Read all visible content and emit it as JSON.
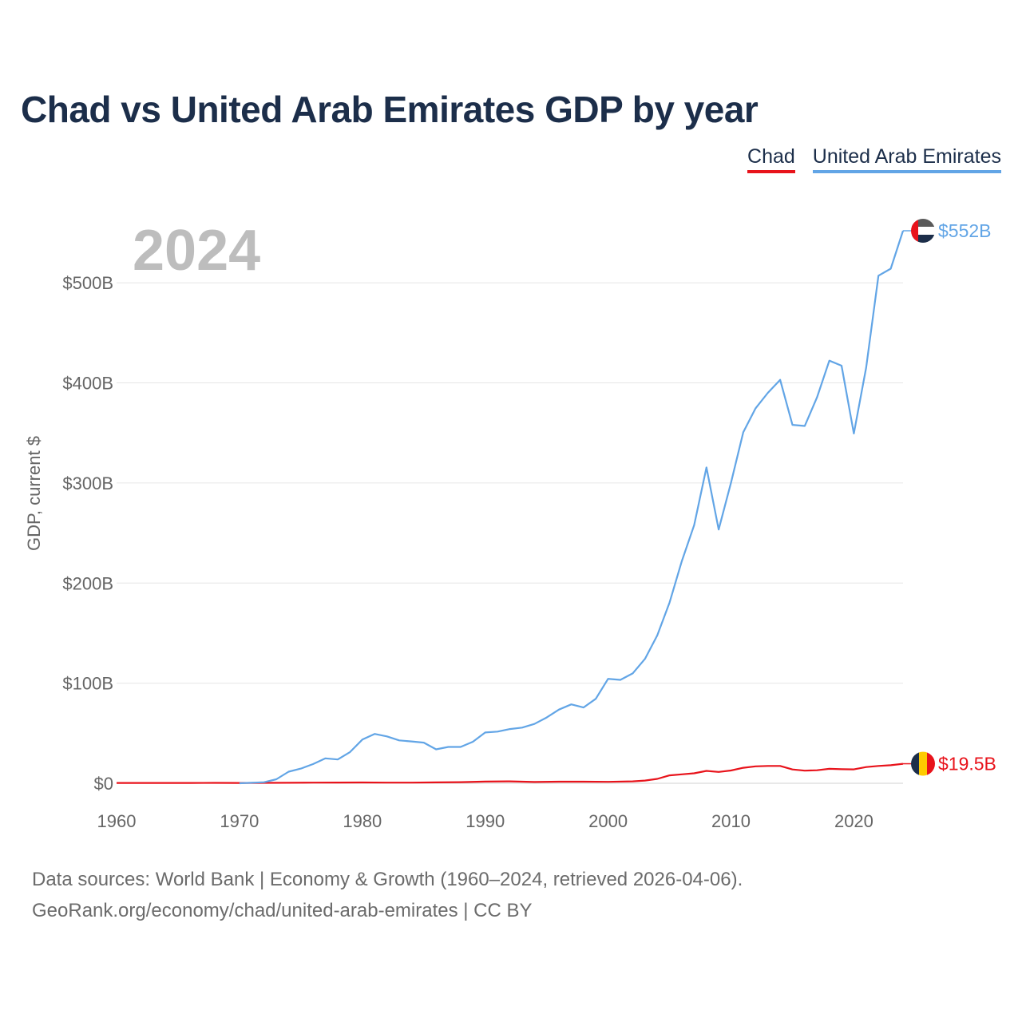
{
  "title": "Chad vs United Arab Emirates GDP by year",
  "legend": {
    "chad": "Chad",
    "uae": "United Arab Emirates"
  },
  "year_label": "2024",
  "source": {
    "line1": "Data sources: World Bank | Economy & Growth (1960–2024, retrieved 2026-04-06).",
    "line2": "GeoRank.org/economy/chad/united-arab-emirates | CC BY"
  },
  "colors": {
    "chad": "#e8131b",
    "uae": "#62a5e6",
    "grid": "#e6e6e6",
    "axis_text": "#666666",
    "year": "#bdbdbd"
  },
  "chart_data": {
    "type": "line",
    "title": "Chad vs United Arab Emirates GDP by year",
    "xlabel": "",
    "ylabel": "GDP, current $",
    "xlim": [
      1960,
      2024
    ],
    "ylim": [
      0,
      552
    ],
    "xticks": [
      1960,
      1970,
      1980,
      1990,
      2000,
      2010,
      2020
    ],
    "yticks": [
      0,
      100,
      200,
      300,
      400,
      500
    ],
    "ytick_labels": [
      "$0",
      "$100B",
      "$200B",
      "$300B",
      "$400B",
      "$500B"
    ],
    "grid": true,
    "series": [
      {
        "name": "Chad",
        "color": "#e8131b",
        "end_label": "$19.5B",
        "points": [
          [
            1960,
            0.3
          ],
          [
            1962,
            0.3
          ],
          [
            1964,
            0.3
          ],
          [
            1966,
            0.3
          ],
          [
            1968,
            0.4
          ],
          [
            1970,
            0.3
          ],
          [
            1972,
            0.4
          ],
          [
            1974,
            0.5
          ],
          [
            1976,
            0.6
          ],
          [
            1978,
            0.7
          ],
          [
            1980,
            0.8
          ],
          [
            1982,
            0.6
          ],
          [
            1984,
            0.6
          ],
          [
            1986,
            0.9
          ],
          [
            1988,
            1.1
          ],
          [
            1990,
            1.7
          ],
          [
            1992,
            1.9
          ],
          [
            1994,
            1.3
          ],
          [
            1996,
            1.6
          ],
          [
            1998,
            1.6
          ],
          [
            2000,
            1.4
          ],
          [
            2002,
            1.9
          ],
          [
            2003,
            2.7
          ],
          [
            2004,
            4.4
          ],
          [
            2005,
            7.9
          ],
          [
            2006,
            8.9
          ],
          [
            2007,
            10
          ],
          [
            2008,
            12.4
          ],
          [
            2009,
            11.3
          ],
          [
            2010,
            12.8
          ],
          [
            2011,
            15.5
          ],
          [
            2012,
            16.9
          ],
          [
            2013,
            17.3
          ],
          [
            2014,
            17.3
          ],
          [
            2015,
            13.8
          ],
          [
            2016,
            12.6
          ],
          [
            2017,
            13
          ],
          [
            2018,
            14.4
          ],
          [
            2019,
            14
          ],
          [
            2020,
            13.9
          ],
          [
            2021,
            16.2
          ],
          [
            2022,
            17.3
          ],
          [
            2023,
            18
          ],
          [
            2024,
            19.5
          ]
        ]
      },
      {
        "name": "United Arab Emirates",
        "color": "#62a5e6",
        "end_label": "$552B",
        "points": [
          [
            1970,
            0
          ],
          [
            1972,
            1
          ],
          [
            1973,
            4
          ],
          [
            1974,
            11.6
          ],
          [
            1975,
            14.7
          ],
          [
            1976,
            19.2
          ],
          [
            1977,
            24.9
          ],
          [
            1978,
            23.8
          ],
          [
            1979,
            31.2
          ],
          [
            1980,
            43.6
          ],
          [
            1981,
            49.3
          ],
          [
            1982,
            46.8
          ],
          [
            1983,
            42.8
          ],
          [
            1984,
            41.8
          ],
          [
            1985,
            40.6
          ],
          [
            1986,
            33.9
          ],
          [
            1987,
            36.3
          ],
          [
            1988,
            36.3
          ],
          [
            1989,
            41.5
          ],
          [
            1990,
            50.7
          ],
          [
            1991,
            51.6
          ],
          [
            1992,
            54.2
          ],
          [
            1993,
            55.6
          ],
          [
            1994,
            59.3
          ],
          [
            1995,
            65.7
          ],
          [
            1996,
            73.6
          ],
          [
            1997,
            78.8
          ],
          [
            1998,
            75.7
          ],
          [
            1999,
            84.4
          ],
          [
            2000,
            104.3
          ],
          [
            2001,
            103.3
          ],
          [
            2002,
            109.8
          ],
          [
            2003,
            124.3
          ],
          [
            2004,
            147.8
          ],
          [
            2005,
            180.6
          ],
          [
            2006,
            222.1
          ],
          [
            2007,
            257.9
          ],
          [
            2008,
            315.5
          ],
          [
            2009,
            253.5
          ],
          [
            2010,
            300.2
          ],
          [
            2011,
            350.7
          ],
          [
            2012,
            374.6
          ],
          [
            2013,
            390.1
          ],
          [
            2014,
            403.1
          ],
          [
            2015,
            358.1
          ],
          [
            2016,
            357
          ],
          [
            2017,
            385.6
          ],
          [
            2018,
            422.2
          ],
          [
            2019,
            417.2
          ],
          [
            2020,
            349.5
          ],
          [
            2021,
            415.2
          ],
          [
            2022,
            507.1
          ],
          [
            2023,
            514.1
          ],
          [
            2024,
            552
          ]
        ]
      }
    ]
  }
}
